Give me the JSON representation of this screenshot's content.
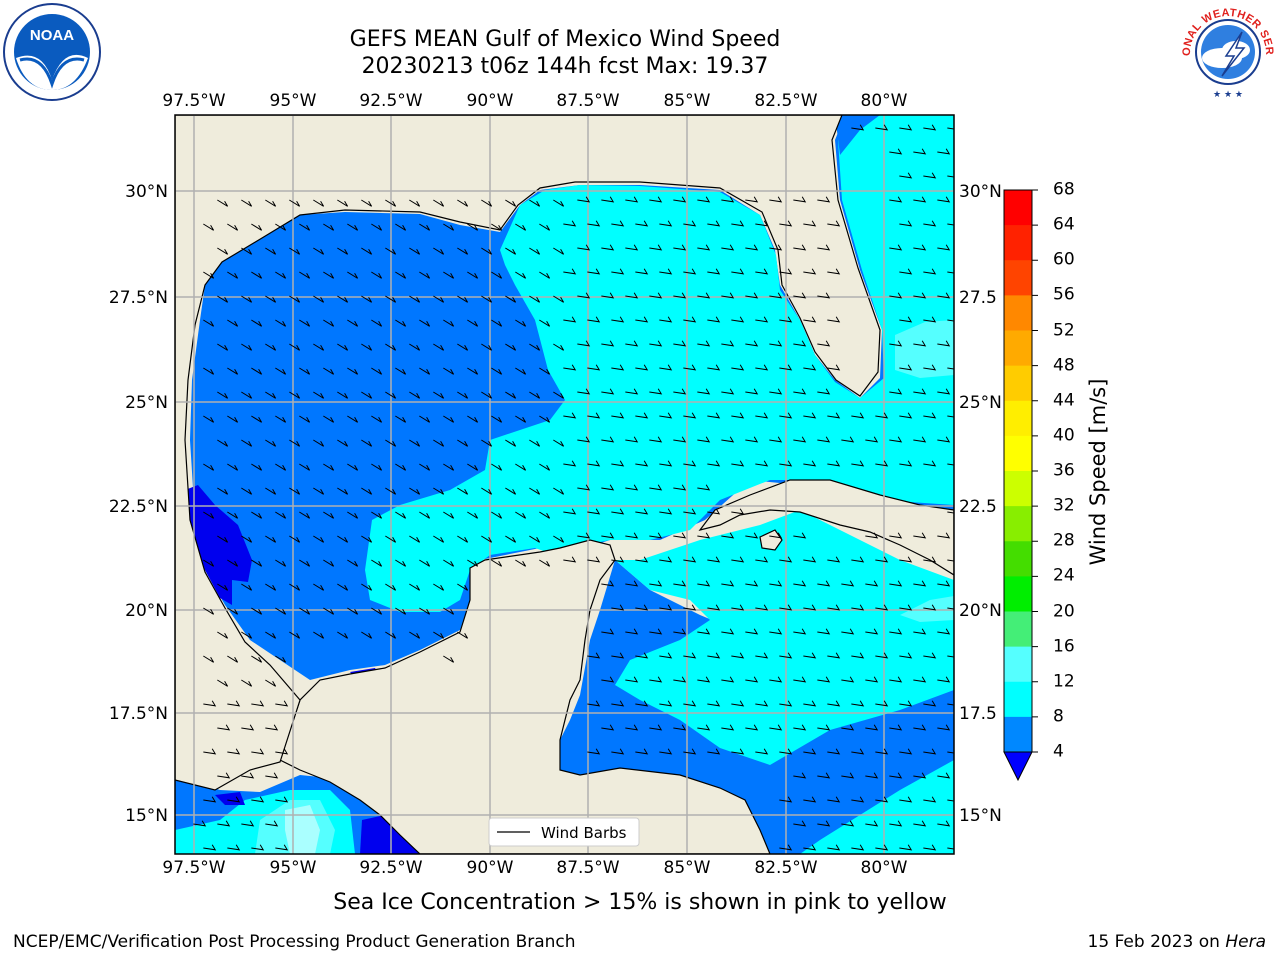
{
  "title": {
    "line1": "GEFS MEAN Gulf of Mexico Wind Speed",
    "line2": "20230213 t06z 144h fcst   Max: 19.37"
  },
  "logos": {
    "left": {
      "icon": "noaa-logo",
      "text": "NOAA"
    },
    "right": {
      "icon": "nws-logo",
      "text": "NATIONAL WEATHER SERVICE"
    }
  },
  "map": {
    "lon_labels": [
      "97.5°W",
      "95°W",
      "92.5°W",
      "90°W",
      "87.5°W",
      "85°W",
      "82.5°W",
      "80°W"
    ],
    "lat_labels_left": [
      "30°N",
      "27.5°N",
      "25°N",
      "22.5°N",
      "20°N",
      "17.5°N",
      "15°N"
    ],
    "lat_labels_right": [
      "30°N",
      "27.5",
      "25°N",
      "22.5",
      "20°N",
      "17.5",
      "15°N"
    ],
    "legend_label": "Wind Barbs"
  },
  "colorbar": {
    "label": "Wind Speed [m/s]",
    "ticks": [
      "68",
      "64",
      "60",
      "56",
      "52",
      "48",
      "44",
      "40",
      "36",
      "32",
      "28",
      "24",
      "20",
      "16",
      "12",
      "8",
      "4"
    ],
    "colors": [
      "#ff0000",
      "#ff2200",
      "#ff4400",
      "#ff6600",
      "#ff8800",
      "#ffaa00",
      "#ffcc00",
      "#ffee00",
      "#ffff00",
      "#eeff00",
      "#ccff00",
      "#88ee00",
      "#44dd00",
      "#00ee00",
      "#44ee77",
      "#aaffff",
      "#55ffff",
      "#00ffff",
      "#0088ff",
      "#0000ff"
    ]
  },
  "footer": {
    "note": "Sea Ice Concentration > 15% is shown in pink to yellow",
    "credit_left": "NCEP/EMC/Verification Post Processing Product Generation Branch",
    "credit_right_date": "15 Feb 2023 on ",
    "credit_right_host": "Hera"
  },
  "palette": {
    "land": "#efecdc",
    "speed_4_8": "#0077ff",
    "speed_lt4": "#0000ee",
    "speed_8_12": "#00ffff",
    "speed_12_16": "#55ffff",
    "grid": "#b0b0b0"
  }
}
